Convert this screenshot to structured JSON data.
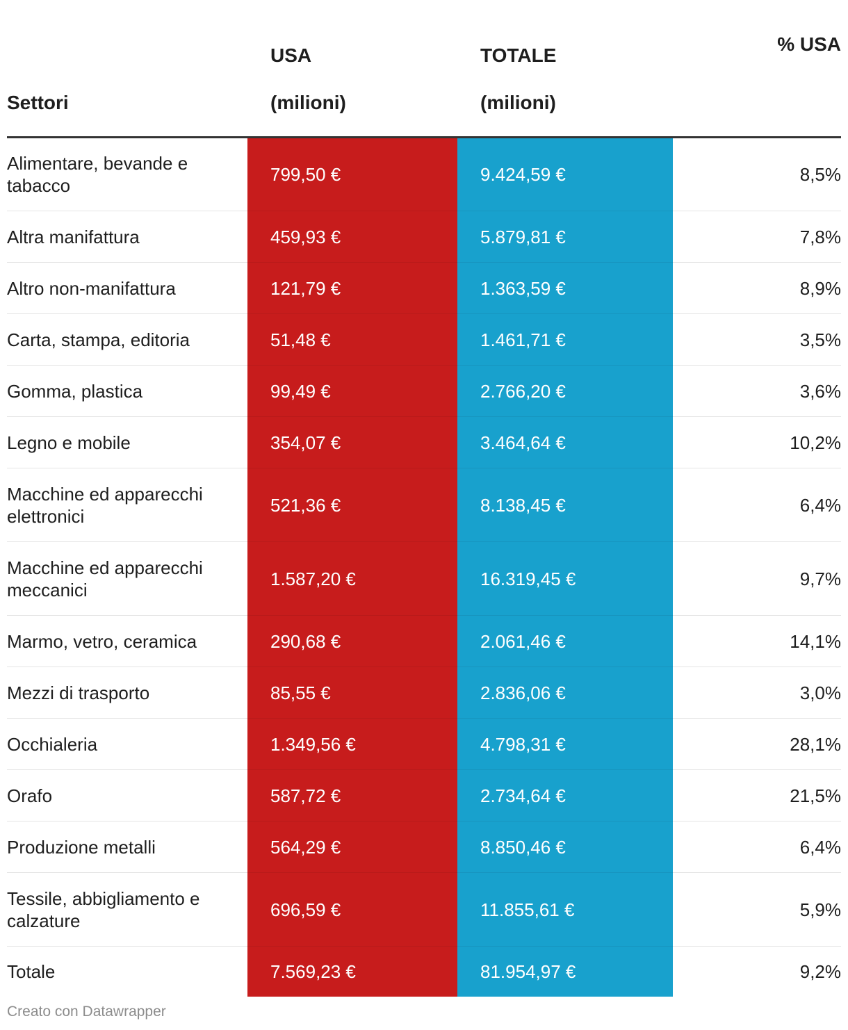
{
  "chart_data": {
    "type": "table",
    "columns": [
      {
        "key": "sector",
        "line1": "",
        "line2": "Settori"
      },
      {
        "key": "usa",
        "line1": "USA",
        "line2": "(milioni)"
      },
      {
        "key": "tot",
        "line1": "TOTALE",
        "line2": "(milioni)"
      },
      {
        "key": "pct",
        "line1": "% USA",
        "line2": ""
      }
    ],
    "rows": [
      {
        "sector": "Alimentare, bevande e tabacco",
        "usa": "799,50 €",
        "tot": "9.424,59 €",
        "pct": "8,5%"
      },
      {
        "sector": "Altra manifattura",
        "usa": "459,93 €",
        "tot": "5.879,81 €",
        "pct": "7,8%"
      },
      {
        "sector": "Altro non-manifattura",
        "usa": "121,79 €",
        "tot": "1.363,59 €",
        "pct": "8,9%"
      },
      {
        "sector": "Carta, stampa, editoria",
        "usa": "51,48 €",
        "tot": "1.461,71 €",
        "pct": "3,5%"
      },
      {
        "sector": "Gomma, plastica",
        "usa": "99,49 €",
        "tot": "2.766,20 €",
        "pct": "3,6%"
      },
      {
        "sector": "Legno e mobile",
        "usa": "354,07 €",
        "tot": "3.464,64 €",
        "pct": "10,2%"
      },
      {
        "sector": "Macchine ed apparecchi elettronici",
        "usa": "521,36 €",
        "tot": "8.138,45 €",
        "pct": "6,4%"
      },
      {
        "sector": "Macchine ed apparecchi meccanici",
        "usa": "1.587,20 €",
        "tot": "16.319,45 €",
        "pct": "9,7%"
      },
      {
        "sector": "Marmo, vetro, ceramica",
        "usa": "290,68 €",
        "tot": "2.061,46 €",
        "pct": "14,1%"
      },
      {
        "sector": "Mezzi di trasporto",
        "usa": "85,55 €",
        "tot": "2.836,06 €",
        "pct": "3,0%"
      },
      {
        "sector": "Occhialeria",
        "usa": "1.349,56 €",
        "tot": "4.798,31 €",
        "pct": "28,1%"
      },
      {
        "sector": "Orafo",
        "usa": "587,72 €",
        "tot": "2.734,64 €",
        "pct": "21,5%"
      },
      {
        "sector": "Produzione metalli",
        "usa": "564,29 €",
        "tot": "8.850,46 €",
        "pct": "6,4%"
      },
      {
        "sector": "Tessile, abbigliamento e calzature",
        "usa": "696,59 €",
        "tot": "11.855,61 €",
        "pct": "5,9%"
      },
      {
        "sector": "Totale",
        "usa": "7.569,23 €",
        "tot": "81.954,97 €",
        "pct": "9,2%"
      }
    ],
    "colors": {
      "usa": "#c71c1c",
      "tot": "#18a1cd"
    }
  },
  "footer": {
    "credit": "Creato con Datawrapper"
  }
}
